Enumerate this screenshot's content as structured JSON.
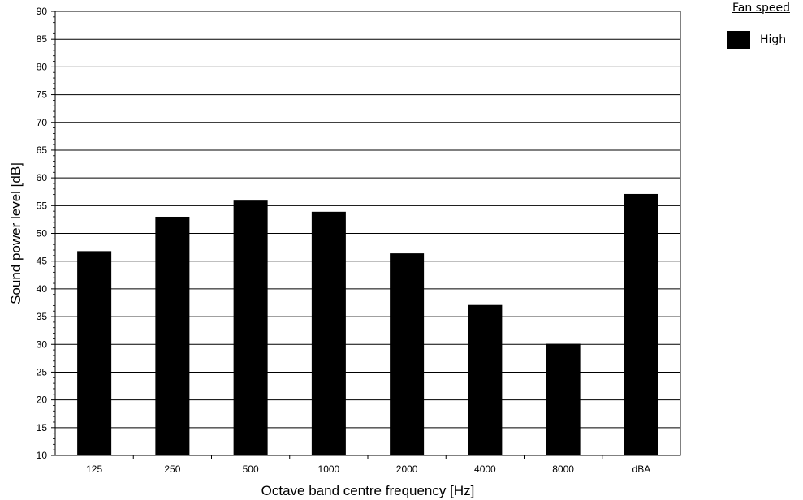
{
  "chart_data": {
    "type": "bar",
    "categories": [
      "125",
      "250",
      "500",
      "1000",
      "2000",
      "4000",
      "8000",
      "dBA"
    ],
    "series": [
      {
        "name": "High",
        "values": [
          46.8,
          53.0,
          55.9,
          53.9,
          46.4,
          37.1,
          30.1,
          57.1
        ],
        "color": "#000000"
      }
    ],
    "xlabel": "Octave band centre frequency [Hz]",
    "ylabel": "Sound power level [dB]",
    "ylim": [
      10,
      90
    ],
    "yticks": [
      10,
      15,
      20,
      25,
      30,
      35,
      40,
      45,
      50,
      55,
      60,
      65,
      70,
      75,
      80,
      85,
      90
    ],
    "grid": true,
    "legend": {
      "title": "Fan speed",
      "placement": "top-right",
      "entries": [
        "High"
      ]
    }
  }
}
